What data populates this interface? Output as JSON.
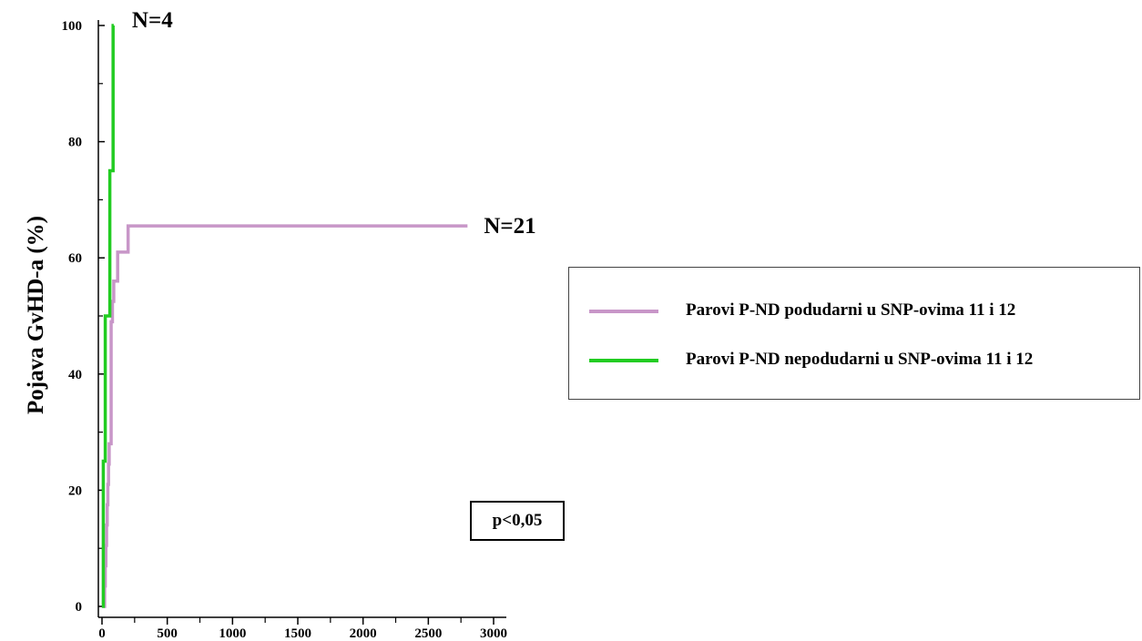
{
  "chart_data": {
    "type": "line",
    "step": true,
    "title": "",
    "xlabel": "",
    "ylabel": "Pojava GvHD-a (%)",
    "xlim": [
      0,
      3000
    ],
    "ylim": [
      0,
      100
    ],
    "x_ticks": [
      "0",
      "500",
      "1000",
      "1500",
      "2000",
      "2500",
      "3000"
    ],
    "y_ticks": [
      "0",
      "20",
      "40",
      "60",
      "80",
      "100"
    ],
    "x_tick_values": [
      0,
      500,
      1000,
      1500,
      2000,
      2500,
      3000
    ],
    "y_tick_values": [
      0,
      20,
      40,
      60,
      80,
      100
    ],
    "grid": false,
    "legend_placement": "right",
    "series": [
      {
        "name": "Parovi P-ND podudarni u SNP-ovima 11 i 12",
        "color": "#c896c8",
        "end_label": "N=21",
        "x": [
          15,
          20,
          25,
          30,
          35,
          40,
          45,
          50,
          55,
          60,
          65,
          70,
          80,
          90,
          100,
          120,
          150,
          200,
          2800
        ],
        "y": [
          0,
          3.5,
          7,
          10.5,
          14,
          17.5,
          21,
          24.5,
          28,
          28,
          28,
          49,
          52.5,
          56,
          56,
          61,
          61,
          65.5,
          65.5
        ]
      },
      {
        "name": "Parovi P-ND nepodudarni u SNP-ovima 11 i 12",
        "color": "#22cc22",
        "end_label": "N=4",
        "x": [
          0,
          10,
          25,
          60,
          85,
          90
        ],
        "y": [
          0,
          25,
          50,
          75,
          100,
          100
        ]
      }
    ]
  },
  "annotations": {
    "p_value": "p<0,05"
  }
}
